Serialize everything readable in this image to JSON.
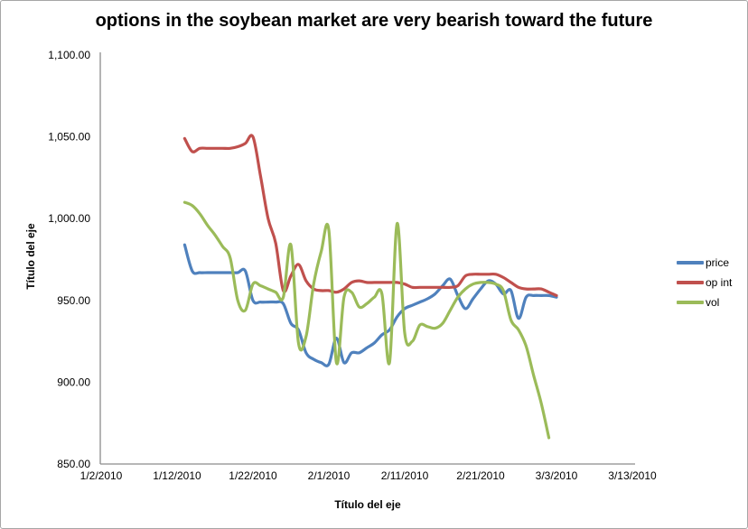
{
  "chart_data": {
    "type": "line",
    "smoothed": true,
    "grid": false,
    "title": "options in the soybean market are very bearish toward the future",
    "xlabel": "Título del eje",
    "ylabel": "Título del eje",
    "legend_position": "right",
    "ylim": [
      850,
      1100
    ],
    "y_ticks": [
      {
        "label": "1,100.00",
        "value": 1100
      },
      {
        "label": "1,050.00",
        "value": 1050
      },
      {
        "label": "1,000.00",
        "value": 1000
      },
      {
        "label": "950.00",
        "value": 950
      },
      {
        "label": "900.00",
        "value": 900
      },
      {
        "label": "850.00",
        "value": 850
      }
    ],
    "x_ticks": [
      "1/2/2010",
      "1/12/2010",
      "1/22/2010",
      "2/1/2010",
      "2/11/2010",
      "2/21/2010",
      "3/3/2010",
      "3/13/2010"
    ],
    "dates": [
      "1/13/2010",
      "1/14/2010",
      "1/15/2010",
      "1/16/2010",
      "1/17/2010",
      "1/18/2010",
      "1/19/2010",
      "1/20/2010",
      "1/21/2010",
      "1/22/2010",
      "1/23/2010",
      "1/24/2010",
      "1/25/2010",
      "1/26/2010",
      "1/27/2010",
      "1/28/2010",
      "1/29/2010",
      "1/30/2010",
      "1/31/2010",
      "2/1/2010",
      "2/2/2010",
      "2/3/2010",
      "2/4/2010",
      "2/5/2010",
      "2/6/2010",
      "2/7/2010",
      "2/8/2010",
      "2/9/2010",
      "2/10/2010",
      "2/11/2010",
      "2/12/2010",
      "2/13/2010",
      "2/14/2010",
      "2/15/2010",
      "2/16/2010",
      "2/17/2010",
      "2/18/2010",
      "2/19/2010",
      "2/20/2010",
      "2/21/2010",
      "2/22/2010",
      "2/23/2010",
      "2/24/2010",
      "2/25/2010",
      "2/26/2010",
      "2/27/2010",
      "2/28/2010",
      "3/1/2010",
      "3/2/2010",
      "3/3/2010"
    ],
    "series": [
      {
        "name": "price",
        "color": "#4F81BD",
        "values": [
          984,
          968,
          967,
          967,
          967,
          967,
          967,
          967,
          968,
          950,
          949,
          949,
          949,
          948,
          936,
          932,
          918,
          914,
          912,
          911,
          927,
          912,
          918,
          918,
          921,
          924,
          929,
          932,
          940,
          945,
          947,
          949,
          951,
          954,
          959,
          963,
          953,
          945,
          951,
          957,
          962,
          960,
          954,
          956,
          939,
          952,
          953,
          953,
          953,
          952
        ]
      },
      {
        "name": "op int",
        "color": "#C0504D",
        "values": [
          1049,
          1041,
          1043,
          1043,
          1043,
          1043,
          1043,
          1044,
          1046,
          1050,
          1026,
          1000,
          985,
          956,
          965,
          972,
          962,
          957,
          956,
          956,
          955,
          957,
          961,
          962,
          961,
          961,
          961,
          961,
          961,
          960,
          958,
          958,
          958,
          958,
          958,
          958,
          959,
          965,
          966,
          966,
          966,
          966,
          964,
          961,
          958,
          957,
          957,
          957,
          955,
          953
        ]
      },
      {
        "name": "vol",
        "color": "#9BBB59",
        "values": [
          1010,
          1008,
          1003,
          996,
          990,
          983,
          976,
          950,
          944,
          960,
          959,
          957,
          955,
          952,
          984,
          924,
          928,
          960,
          980,
          993,
          912,
          952,
          955,
          946,
          948,
          952,
          954,
          912,
          997,
          930,
          925,
          935,
          934,
          933,
          936,
          944,
          952,
          957,
          960,
          961,
          961,
          960,
          956,
          938,
          932,
          922,
          904,
          887,
          866,
          null
        ]
      }
    ],
    "colors": {
      "axis": "#8c8c8c",
      "tick_text": "#000000",
      "title_text": "#000000",
      "chart_border": "#a6a6a6"
    }
  }
}
